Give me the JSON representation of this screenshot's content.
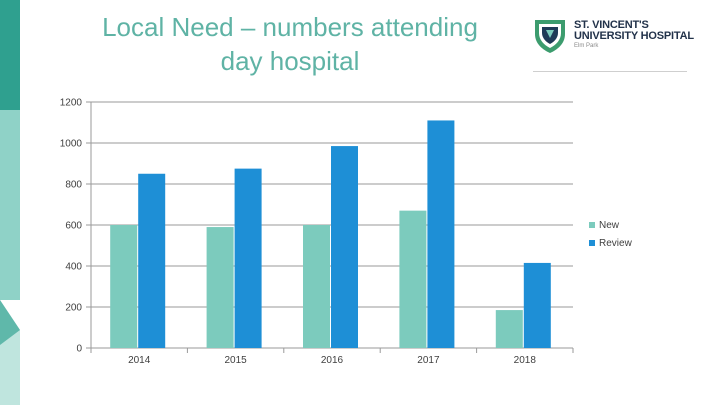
{
  "slide": {
    "title_line1": "Local Need – numbers attending",
    "title_line2": "day hospital"
  },
  "logo": {
    "line1": "ST. VINCENT'S",
    "line2": "UNIVERSITY HOSPITAL",
    "sub": "Elm Park"
  },
  "colors": {
    "title": "#5fb3a5",
    "new": "#7ccbbd",
    "review": "#1e8fd6",
    "strip_dark": "#2fa08f",
    "strip_light": "#8fd2c7"
  },
  "chart_data": {
    "type": "bar",
    "categories": [
      "2014",
      "2015",
      "2016",
      "2017",
      "2018"
    ],
    "series": [
      {
        "name": "New",
        "values": [
          600,
          590,
          600,
          670,
          185
        ]
      },
      {
        "name": "Review",
        "values": [
          850,
          875,
          985,
          1110,
          415
        ]
      }
    ],
    "yticks": [
      "0",
      "200",
      "400",
      "600",
      "800",
      "1000",
      "1200"
    ],
    "ylim": [
      0,
      1200
    ],
    "grid": true,
    "legend": "right"
  }
}
